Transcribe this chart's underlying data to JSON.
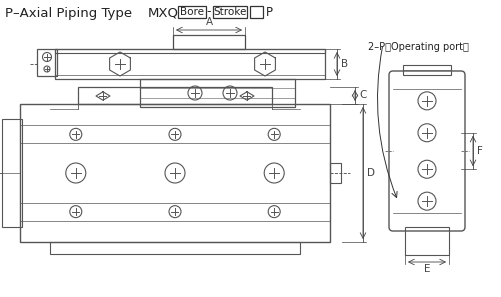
{
  "title": "P–Axial Piping Type",
  "model_label": "MXQ",
  "bore_label": "Bore",
  "stroke_label": "Stroke",
  "p_label": "P",
  "dim_A": "A",
  "dim_B": "B",
  "dim_C": "C",
  "dim_D": "D",
  "dim_E": "E",
  "dim_F": "F",
  "operating_port_label": "2–P（Operating port）",
  "bg_color": "#ffffff",
  "line_color": "#555555",
  "text_color": "#222222",
  "fig_width": 5.02,
  "fig_height": 2.97
}
